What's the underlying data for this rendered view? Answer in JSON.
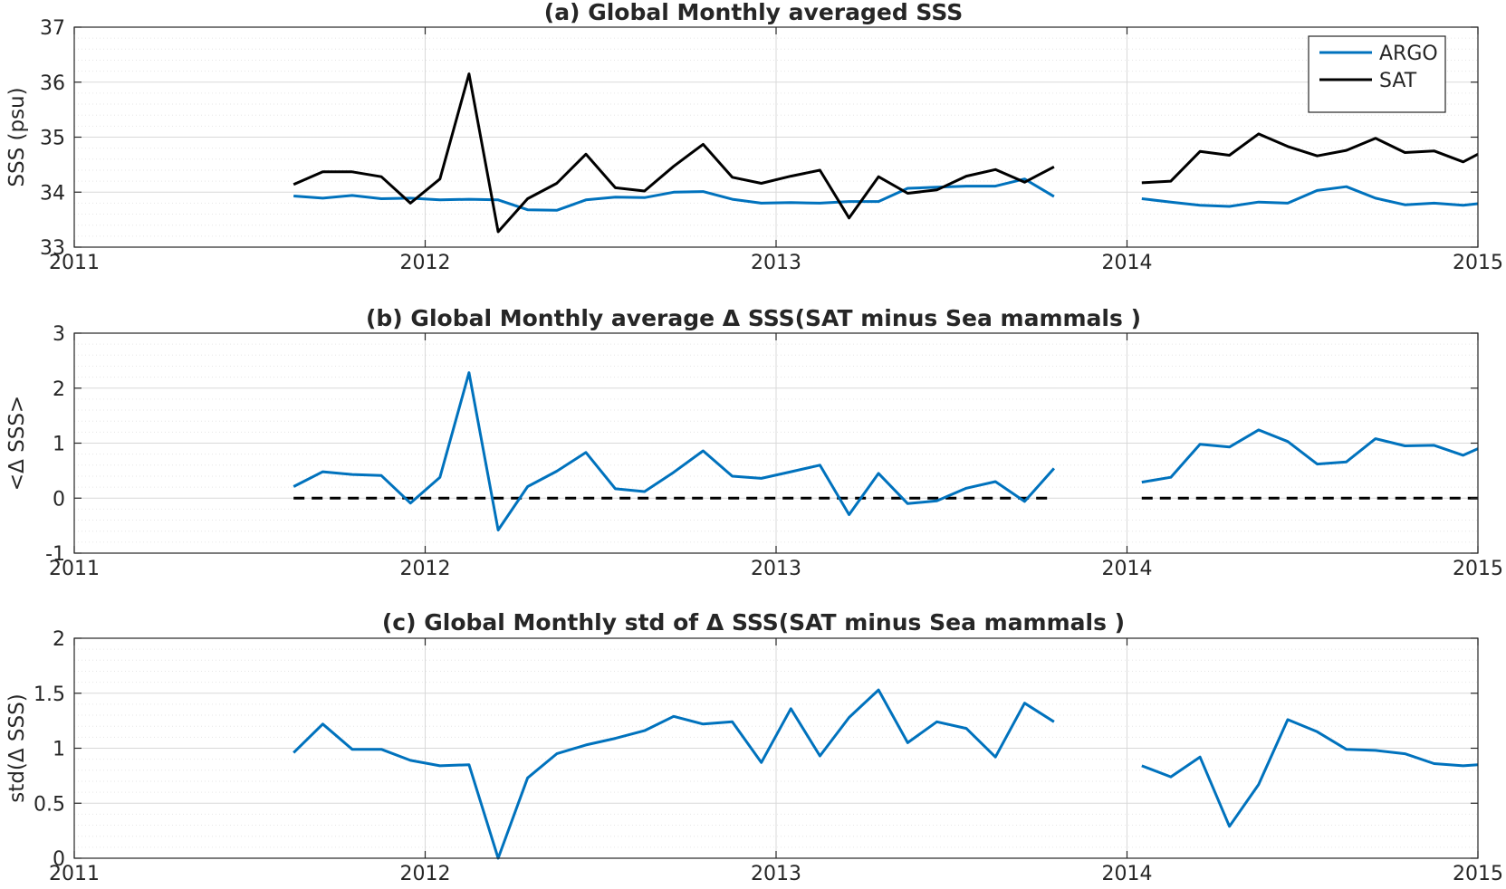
{
  "colors": {
    "argo": "#0072BD",
    "sat": "#000000",
    "axis": "#262626",
    "grid": "#d9d9d9",
    "zero_line": "#000000"
  },
  "chart_data": [
    {
      "type": "line",
      "title": "(a) Global Monthly averaged SSS",
      "ylabel": "SSS (psu)",
      "xlabel": "",
      "xlim": [
        2011,
        2015
      ],
      "ylim": [
        33,
        37
      ],
      "xticks": [
        "2011",
        "2012",
        "2013",
        "2014",
        "2015"
      ],
      "yticks": [
        "33",
        "34",
        "35",
        "36",
        "37"
      ],
      "grid": true,
      "minor_grid": true,
      "legend": {
        "placement": "top-right"
      },
      "zero_line": false,
      "series": [
        {
          "name": "ARGO",
          "color": "#0072BD",
          "segments": [
            [
              [
                2011.625,
                33.93
              ],
              [
                2011.708,
                33.89
              ],
              [
                2011.792,
                33.94
              ],
              [
                2011.875,
                33.88
              ],
              [
                2011.958,
                33.89
              ],
              [
                2012.042,
                33.86
              ],
              [
                2012.125,
                33.87
              ],
              [
                2012.208,
                33.86
              ],
              [
                2012.292,
                33.68
              ],
              [
                2012.375,
                33.67
              ],
              [
                2012.458,
                33.86
              ],
              [
                2012.542,
                33.91
              ],
              [
                2012.625,
                33.9
              ],
              [
                2012.708,
                34.0
              ],
              [
                2012.792,
                34.01
              ],
              [
                2012.875,
                33.87
              ],
              [
                2012.958,
                33.8
              ],
              [
                2013.042,
                33.81
              ],
              [
                2013.125,
                33.8
              ],
              [
                2013.208,
                33.83
              ],
              [
                2013.292,
                33.83
              ],
              [
                2013.375,
                34.07
              ],
              [
                2013.458,
                34.09
              ],
              [
                2013.542,
                34.11
              ],
              [
                2013.625,
                34.11
              ],
              [
                2013.708,
                34.24
              ],
              [
                2013.792,
                33.92
              ]
            ],
            [
              [
                2014.042,
                33.88
              ],
              [
                2014.125,
                33.82
              ],
              [
                2014.208,
                33.76
              ],
              [
                2014.292,
                33.74
              ],
              [
                2014.375,
                33.82
              ],
              [
                2014.458,
                33.8
              ],
              [
                2014.542,
                34.03
              ],
              [
                2014.625,
                34.1
              ],
              [
                2014.708,
                33.89
              ],
              [
                2014.792,
                33.77
              ],
              [
                2014.875,
                33.8
              ],
              [
                2014.958,
                33.76
              ],
              [
                2015.0,
                33.79
              ]
            ]
          ]
        },
        {
          "name": "SAT",
          "color": "#000000",
          "segments": [
            [
              [
                2011.625,
                34.14
              ],
              [
                2011.708,
                34.37
              ],
              [
                2011.792,
                34.37
              ],
              [
                2011.875,
                34.28
              ],
              [
                2011.958,
                33.8
              ],
              [
                2012.042,
                34.24
              ],
              [
                2012.125,
                36.15
              ],
              [
                2012.208,
                33.28
              ],
              [
                2012.292,
                33.88
              ],
              [
                2012.375,
                34.16
              ],
              [
                2012.458,
                34.69
              ],
              [
                2012.542,
                34.08
              ],
              [
                2012.625,
                34.02
              ],
              [
                2012.708,
                34.47
              ],
              [
                2012.792,
                34.87
              ],
              [
                2012.875,
                34.27
              ],
              [
                2012.958,
                34.16
              ],
              [
                2013.042,
                34.29
              ],
              [
                2013.125,
                34.4
              ],
              [
                2013.208,
                33.53
              ],
              [
                2013.292,
                34.28
              ],
              [
                2013.375,
                33.98
              ],
              [
                2013.458,
                34.04
              ],
              [
                2013.542,
                34.29
              ],
              [
                2013.625,
                34.41
              ],
              [
                2013.708,
                34.18
              ],
              [
                2013.792,
                34.46
              ]
            ],
            [
              [
                2014.042,
                34.17
              ],
              [
                2014.125,
                34.2
              ],
              [
                2014.208,
                34.74
              ],
              [
                2014.292,
                34.67
              ],
              [
                2014.375,
                35.06
              ],
              [
                2014.458,
                34.83
              ],
              [
                2014.542,
                34.66
              ],
              [
                2014.625,
                34.76
              ],
              [
                2014.708,
                34.98
              ],
              [
                2014.792,
                34.72
              ],
              [
                2014.875,
                34.75
              ],
              [
                2014.958,
                34.55
              ],
              [
                2015.0,
                34.69
              ]
            ]
          ]
        }
      ]
    },
    {
      "type": "line",
      "title": "(b) Global Monthly average Δ SSS(SAT minus Sea mammals )",
      "ylabel": "<Δ SSS>",
      "xlabel": "",
      "xlim": [
        2011,
        2015
      ],
      "ylim": [
        -1,
        3
      ],
      "xticks": [
        "2011",
        "2012",
        "2013",
        "2014",
        "2015"
      ],
      "yticks": [
        "-1",
        "0",
        "1",
        "2",
        "3"
      ],
      "grid": true,
      "minor_grid": true,
      "zero_line": true,
      "zero_segments": [
        [
          2011.625,
          2013.792
        ],
        [
          2014.042,
          2015.0
        ]
      ],
      "series": [
        {
          "color": "#0072BD",
          "segments": [
            [
              [
                2011.625,
                0.21
              ],
              [
                2011.708,
                0.48
              ],
              [
                2011.792,
                0.43
              ],
              [
                2011.875,
                0.41
              ],
              [
                2011.958,
                -0.09
              ],
              [
                2012.042,
                0.38
              ],
              [
                2012.125,
                2.28
              ],
              [
                2012.208,
                -0.58
              ],
              [
                2012.292,
                0.21
              ],
              [
                2012.375,
                0.49
              ],
              [
                2012.458,
                0.83
              ],
              [
                2012.542,
                0.17
              ],
              [
                2012.625,
                0.12
              ],
              [
                2012.708,
                0.47
              ],
              [
                2012.792,
                0.86
              ],
              [
                2012.875,
                0.4
              ],
              [
                2012.958,
                0.36
              ],
              [
                2013.042,
                0.48
              ],
              [
                2013.125,
                0.6
              ],
              [
                2013.208,
                -0.3
              ],
              [
                2013.292,
                0.45
              ],
              [
                2013.375,
                -0.1
              ],
              [
                2013.458,
                -0.05
              ],
              [
                2013.542,
                0.18
              ],
              [
                2013.625,
                0.3
              ],
              [
                2013.708,
                -0.06
              ],
              [
                2013.792,
                0.54
              ]
            ],
            [
              [
                2014.042,
                0.29
              ],
              [
                2014.125,
                0.38
              ],
              [
                2014.208,
                0.98
              ],
              [
                2014.292,
                0.93
              ],
              [
                2014.375,
                1.24
              ],
              [
                2014.458,
                1.03
              ],
              [
                2014.542,
                0.62
              ],
              [
                2014.625,
                0.66
              ],
              [
                2014.708,
                1.08
              ],
              [
                2014.792,
                0.95
              ],
              [
                2014.875,
                0.96
              ],
              [
                2014.958,
                0.78
              ],
              [
                2015.0,
                0.9
              ]
            ]
          ]
        }
      ]
    },
    {
      "type": "line",
      "title": "(c) Global Monthly std of Δ SSS(SAT minus Sea mammals )",
      "ylabel": "std(Δ SSS)",
      "xlabel": "",
      "xlim": [
        2011,
        2015
      ],
      "ylim": [
        0,
        2
      ],
      "xticks": [
        "2011",
        "2012",
        "2013",
        "2014",
        "2015"
      ],
      "yticks": [
        "0",
        "0.5",
        "1",
        "1.5",
        "2"
      ],
      "grid": true,
      "minor_grid": true,
      "zero_line": false,
      "series": [
        {
          "color": "#0072BD",
          "segments": [
            [
              [
                2011.625,
                0.96
              ],
              [
                2011.708,
                1.22
              ],
              [
                2011.792,
                0.99
              ],
              [
                2011.875,
                0.99
              ],
              [
                2011.958,
                0.89
              ],
              [
                2012.042,
                0.84
              ],
              [
                2012.125,
                0.85
              ],
              [
                2012.208,
                0.0
              ],
              [
                2012.292,
                0.73
              ],
              [
                2012.375,
                0.95
              ],
              [
                2012.458,
                1.03
              ],
              [
                2012.542,
                1.09
              ],
              [
                2012.625,
                1.16
              ],
              [
                2012.708,
                1.29
              ],
              [
                2012.792,
                1.22
              ],
              [
                2012.875,
                1.24
              ],
              [
                2012.958,
                0.87
              ],
              [
                2013.042,
                1.36
              ],
              [
                2013.125,
                0.93
              ],
              [
                2013.208,
                1.28
              ],
              [
                2013.292,
                1.53
              ],
              [
                2013.375,
                1.05
              ],
              [
                2013.458,
                1.24
              ],
              [
                2013.542,
                1.18
              ],
              [
                2013.625,
                0.92
              ],
              [
                2013.708,
                1.41
              ],
              [
                2013.792,
                1.24
              ]
            ],
            [
              [
                2014.042,
                0.84
              ],
              [
                2014.125,
                0.74
              ],
              [
                2014.208,
                0.92
              ],
              [
                2014.292,
                0.29
              ],
              [
                2014.375,
                0.67
              ],
              [
                2014.458,
                1.26
              ],
              [
                2014.542,
                1.15
              ],
              [
                2014.625,
                0.99
              ],
              [
                2014.708,
                0.98
              ],
              [
                2014.792,
                0.95
              ],
              [
                2014.875,
                0.86
              ],
              [
                2014.958,
                0.84
              ],
              [
                2015.0,
                0.85
              ]
            ]
          ]
        }
      ]
    }
  ]
}
